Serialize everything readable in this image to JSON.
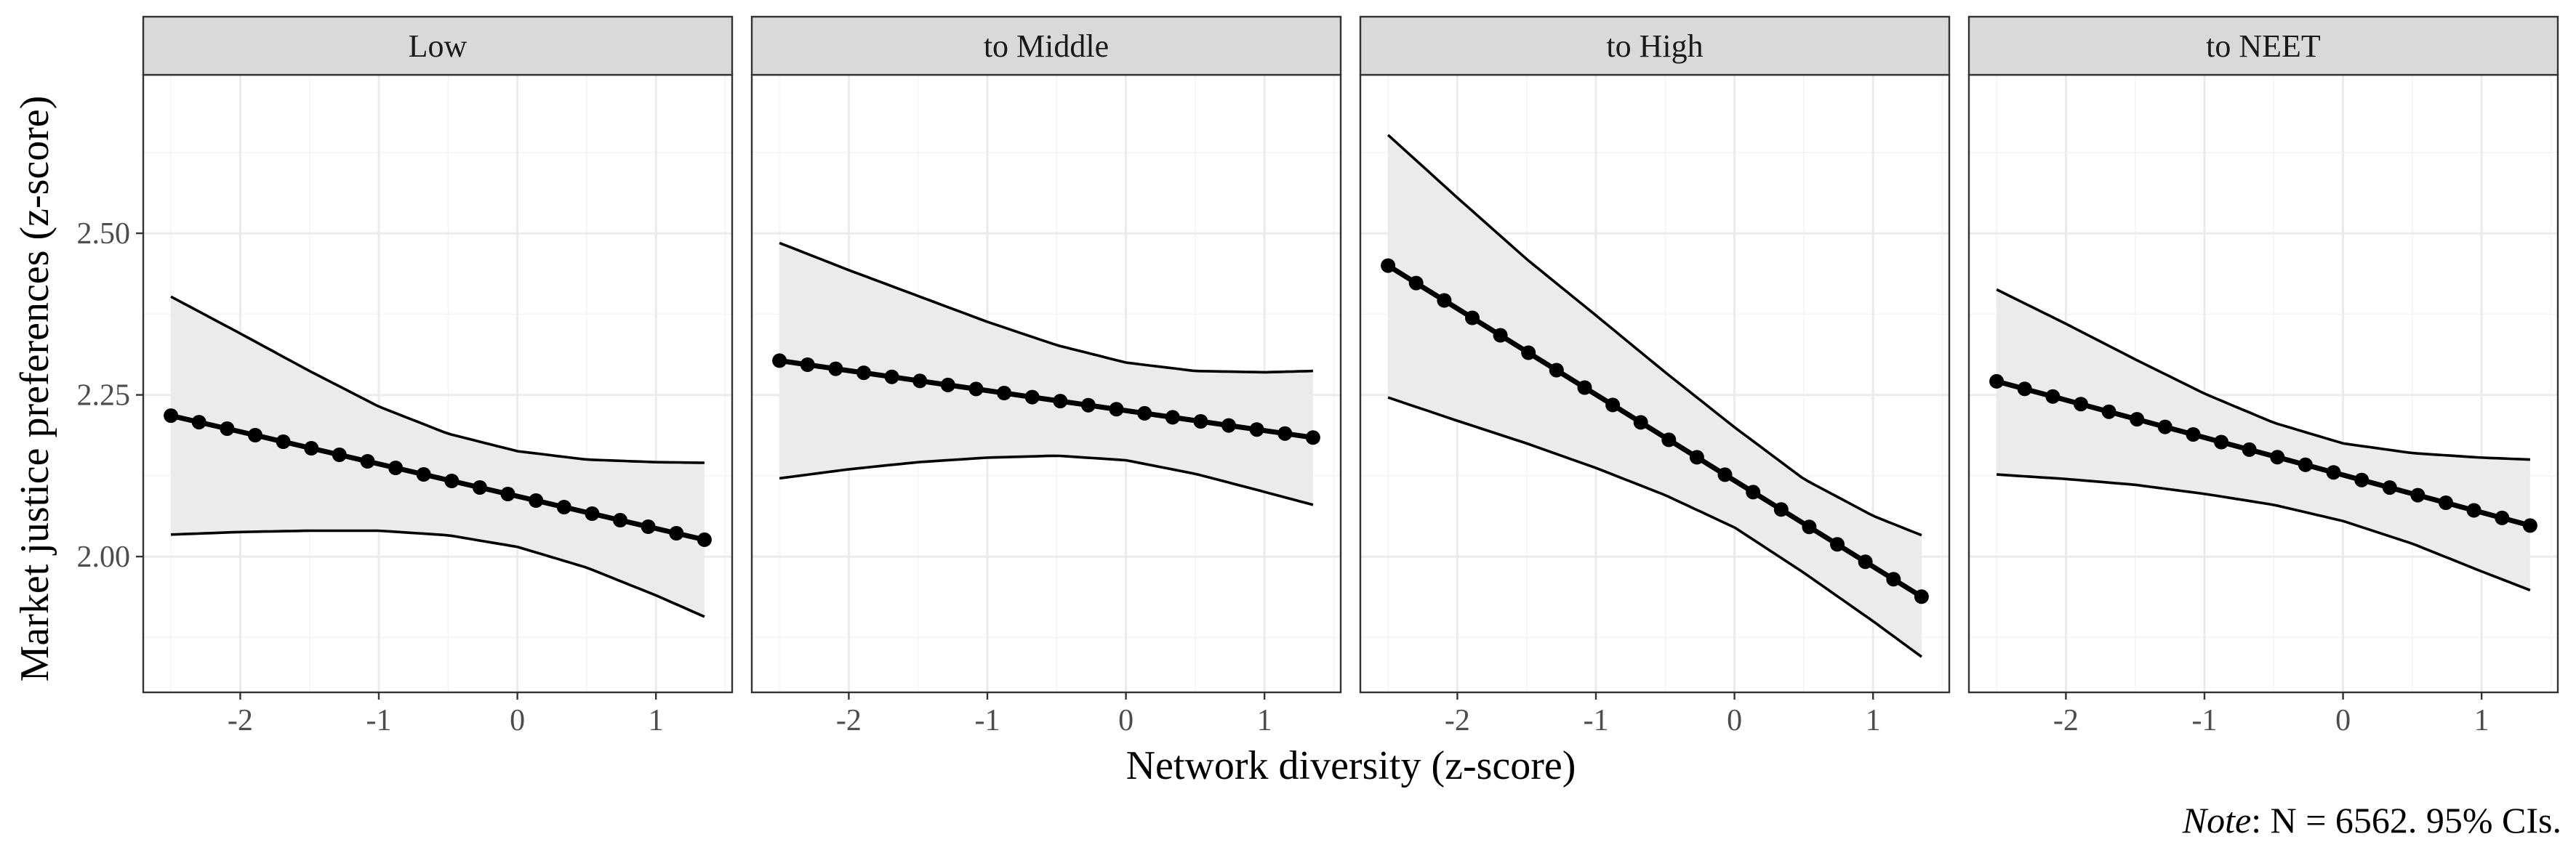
{
  "chart_data": {
    "type": "line",
    "xlabel": "Network diversity (z-score)",
    "ylabel": "Market justice preferences (z-score)",
    "xlim": [
      -2.7,
      1.55
    ],
    "ylim": [
      1.79,
      2.745
    ],
    "x_ticks": [
      -2,
      -1,
      0,
      1
    ],
    "x_tick_labels": [
      "-2",
      "-1",
      "0",
      "1"
    ],
    "x_minor_ticks": [
      -2.5,
      -1.5,
      -0.5,
      0.5,
      1.5
    ],
    "y_ticks": [
      2.0,
      2.25,
      2.5
    ],
    "y_tick_labels": [
      "2.00",
      "2.25",
      "2.50"
    ],
    "y_minor_ticks": [
      1.875,
      2.125,
      2.375,
      2.625
    ],
    "x_range": [
      -2.5,
      1.35
    ],
    "n_points": 20,
    "grid": true,
    "ribbon_color": "#ebebeb",
    "line_color": "#000000",
    "panels": [
      {
        "name": "Low",
        "label": "Low",
        "fit_start": 2.218,
        "fit_end": 2.026,
        "ci_upper": [
          [
            -2.5,
            2.402
          ],
          [
            -2.0,
            2.345
          ],
          [
            -1.5,
            2.287
          ],
          [
            -1.0,
            2.232
          ],
          [
            -0.5,
            2.19
          ],
          [
            0.0,
            2.163
          ],
          [
            0.5,
            2.15
          ],
          [
            1.0,
            2.146
          ],
          [
            1.35,
            2.145
          ]
        ],
        "ci_lower": [
          [
            -2.5,
            2.034
          ],
          [
            -2.0,
            2.038
          ],
          [
            -1.5,
            2.04
          ],
          [
            -1.0,
            2.04
          ],
          [
            -0.5,
            2.033
          ],
          [
            0.0,
            2.015
          ],
          [
            0.5,
            1.983
          ],
          [
            1.0,
            1.94
          ],
          [
            1.35,
            1.907
          ]
        ]
      },
      {
        "name": "to Middle",
        "label": "to Middle",
        "fit_start": 2.303,
        "fit_end": 2.184,
        "ci_upper": [
          [
            -2.5,
            2.485
          ],
          [
            -2.0,
            2.443
          ],
          [
            -1.5,
            2.403
          ],
          [
            -1.0,
            2.363
          ],
          [
            -0.5,
            2.327
          ],
          [
            0.0,
            2.3
          ],
          [
            0.5,
            2.287
          ],
          [
            1.0,
            2.285
          ],
          [
            1.35,
            2.287
          ]
        ],
        "ci_lower": [
          [
            -2.5,
            2.121
          ],
          [
            -2.0,
            2.135
          ],
          [
            -1.5,
            2.146
          ],
          [
            -1.0,
            2.153
          ],
          [
            -0.5,
            2.156
          ],
          [
            0.0,
            2.149
          ],
          [
            0.5,
            2.128
          ],
          [
            1.0,
            2.1
          ],
          [
            1.35,
            2.08
          ]
        ]
      },
      {
        "name": "to High",
        "label": "to High",
        "fit_start": 2.45,
        "fit_end": 1.938,
        "ci_upper": [
          [
            -2.5,
            2.652
          ],
          [
            -2.0,
            2.555
          ],
          [
            -1.5,
            2.46
          ],
          [
            -1.0,
            2.373
          ],
          [
            -0.5,
            2.285
          ],
          [
            0.0,
            2.2
          ],
          [
            0.5,
            2.12
          ],
          [
            1.0,
            2.063
          ],
          [
            1.35,
            2.033
          ]
        ],
        "ci_lower": [
          [
            -2.5,
            2.246
          ],
          [
            -2.0,
            2.21
          ],
          [
            -1.5,
            2.175
          ],
          [
            -1.0,
            2.137
          ],
          [
            -0.5,
            2.095
          ],
          [
            0.0,
            2.045
          ],
          [
            0.5,
            1.975
          ],
          [
            1.0,
            1.9
          ],
          [
            1.35,
            1.845
          ]
        ]
      },
      {
        "name": "to NEET",
        "label": "to NEET",
        "fit_start": 2.271,
        "fit_end": 2.048,
        "ci_upper": [
          [
            -2.5,
            2.413
          ],
          [
            -2.0,
            2.36
          ],
          [
            -1.5,
            2.305
          ],
          [
            -1.0,
            2.252
          ],
          [
            -0.5,
            2.207
          ],
          [
            0.0,
            2.175
          ],
          [
            0.5,
            2.16
          ],
          [
            1.0,
            2.153
          ],
          [
            1.35,
            2.15
          ]
        ],
        "ci_lower": [
          [
            -2.5,
            2.127
          ],
          [
            -2.0,
            2.12
          ],
          [
            -1.5,
            2.111
          ],
          [
            -1.0,
            2.097
          ],
          [
            -0.5,
            2.08
          ],
          [
            0.0,
            2.055
          ],
          [
            0.5,
            2.02
          ],
          [
            1.0,
            1.977
          ],
          [
            1.35,
            1.948
          ]
        ]
      }
    ]
  },
  "caption": {
    "note_label": "Note",
    "note_text": ": N = 6562. 95% CIs."
  }
}
